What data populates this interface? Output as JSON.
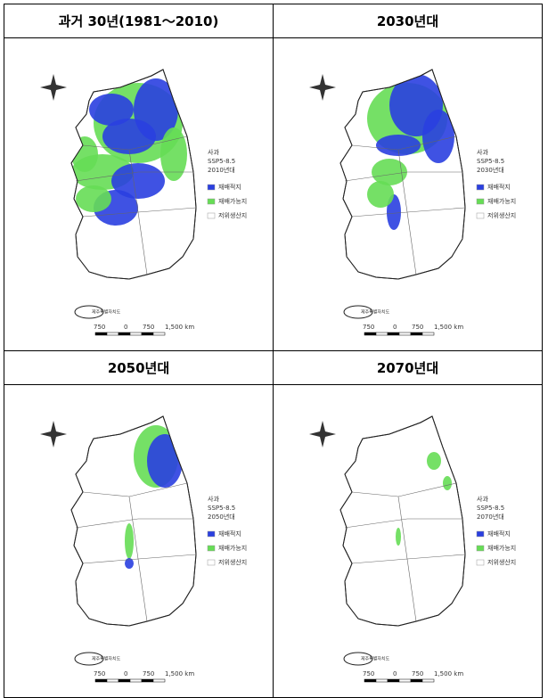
{
  "panels": [
    {
      "title": "과거 30년(1981～2010)",
      "crop": "사과",
      "scenario": "SSP5-8.5",
      "period": "2010년대",
      "legend": [
        "재배적지",
        "재배가능지",
        "저위생산지"
      ],
      "island": "제주특별자치도",
      "scale": [
        "750",
        "0",
        "750",
        "1,500 km"
      ]
    },
    {
      "title": "2030년대",
      "crop": "사과",
      "scenario": "SSP5-8.5",
      "period": "2030년대",
      "legend": [
        "재배적지",
        "재배가능지",
        "저위생산지"
      ],
      "island": "제주특별자치도",
      "scale": [
        "750",
        "0",
        "750",
        "1,500 km"
      ]
    },
    {
      "title": "2050년대",
      "crop": "사과",
      "scenario": "SSP5-8.5",
      "period": "2050년대",
      "legend": [
        "재배적지",
        "재배가능지",
        "저위생산지"
      ],
      "island": "제주특별자치도",
      "scale": [
        "750",
        "0",
        "750",
        "1,500 km"
      ]
    },
    {
      "title": "2070년대",
      "crop": "사과",
      "scenario": "SSP5-8.5",
      "period": "2070년대",
      "legend": [
        "재배적지",
        "재배가능지",
        "저위생산지"
      ],
      "island": "제주특별자치도",
      "scale": [
        "750",
        "0",
        "750",
        "1,500 km"
      ]
    }
  ]
}
